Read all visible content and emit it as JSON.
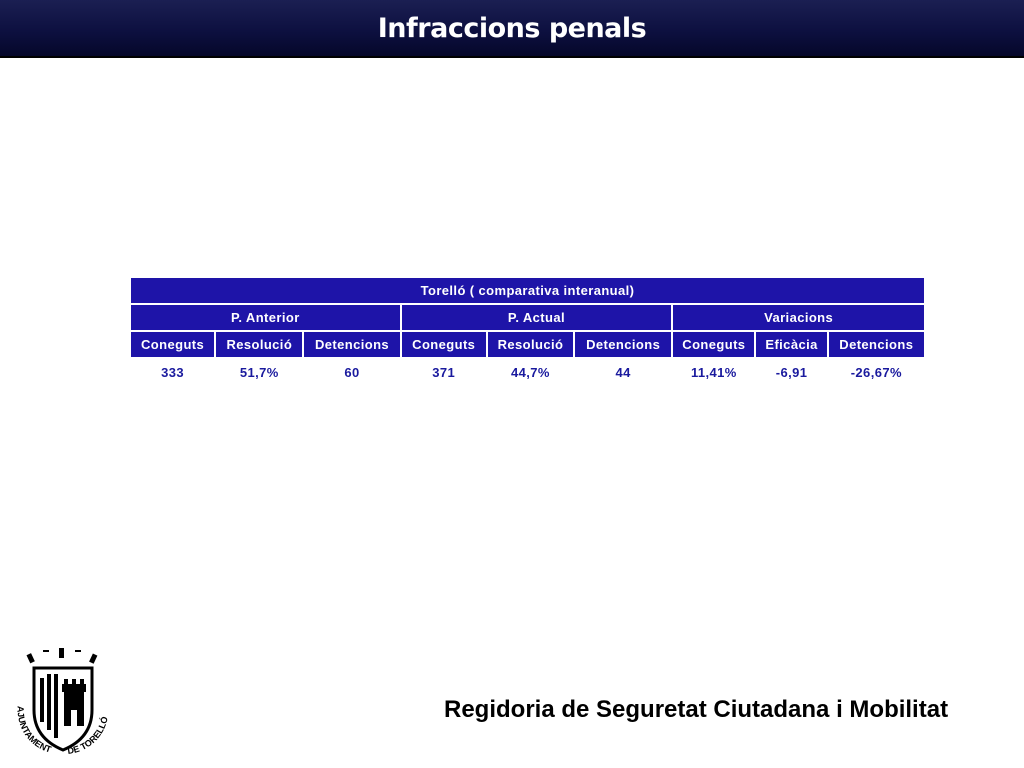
{
  "header": {
    "title": "Infraccions penals"
  },
  "table": {
    "title": "Torelló ( comparativa interanual)",
    "groups": [
      "P. Anterior",
      "P. Actual",
      "Variacions"
    ],
    "columns": [
      "Coneguts",
      "Resolució",
      "Detencions",
      "Coneguts",
      "Resolució",
      "Detencions",
      "Coneguts",
      "Eficàcia",
      "Detencions"
    ],
    "values": [
      "333",
      "51,7%",
      "60",
      "371",
      "44,7%",
      "44",
      "11,41%",
      "-6,91",
      "-26,67%"
    ]
  },
  "logo": {
    "text_left": "AJUNTAMENT",
    "text_right": "DE TORELLÓ"
  },
  "footer": {
    "text": "Regidoria de Seguretat Ciutadana i Mobilitat"
  },
  "colors": {
    "header_bg": "#0d1040",
    "table_header_bg": "#1e14a8",
    "table_text": "#1a1a9e"
  }
}
